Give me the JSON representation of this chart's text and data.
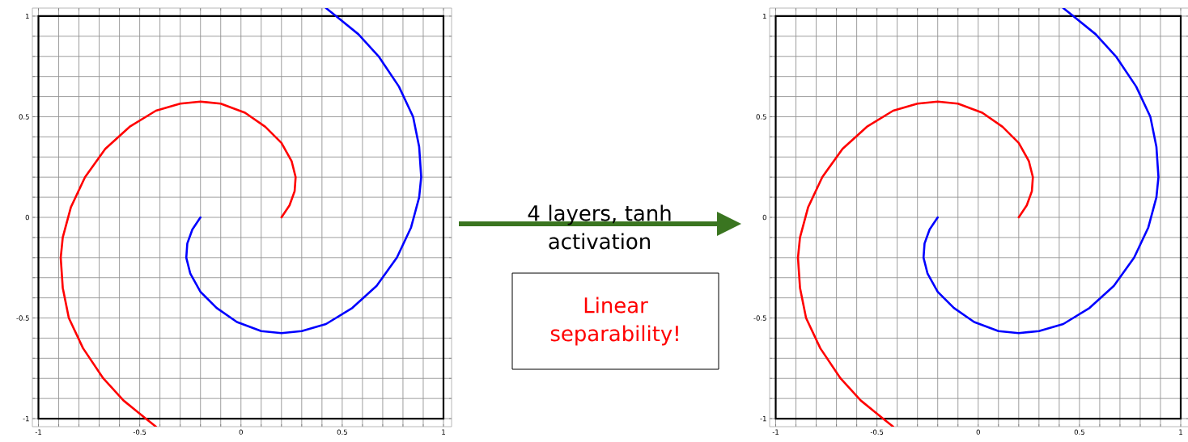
{
  "chart_data": [
    {
      "type": "line",
      "xlim": [
        -1.03,
        1.04
      ],
      "ylim": [
        -1.04,
        1.04
      ],
      "xticks": [
        -1,
        {
          "value": -0.9,
          "label": null
        },
        {
          "value": -0.8,
          "label": null
        },
        {
          "value": -0.7,
          "label": null
        },
        {
          "value": -0.6,
          "label": null
        },
        -0.5,
        {
          "value": -0.4,
          "label": null
        },
        {
          "value": -0.3,
          "label": null
        },
        {
          "value": -0.2,
          "label": null
        },
        {
          "value": -0.1,
          "label": null
        },
        0,
        {
          "value": 0.1,
          "label": null
        },
        {
          "value": 0.2,
          "label": null
        },
        {
          "value": 0.3,
          "label": null
        },
        {
          "value": 0.4,
          "label": null
        },
        0.5,
        {
          "value": 0.6,
          "label": null
        },
        {
          "value": 0.7,
          "label": null
        },
        {
          "value": 0.8,
          "label": null
        },
        {
          "value": 0.9,
          "label": null
        },
        1
      ],
      "yticks": [
        -1,
        {
          "value": -0.9,
          "label": null
        },
        {
          "value": -0.8,
          "label": null
        },
        {
          "value": -0.7,
          "label": null
        },
        {
          "value": -0.6,
          "label": null
        },
        -0.5,
        {
          "value": -0.4,
          "label": null
        },
        {
          "value": -0.3,
          "label": null
        },
        {
          "value": -0.2,
          "label": null
        },
        {
          "value": -0.1,
          "label": null
        },
        0,
        {
          "value": 0.1,
          "label": null
        },
        {
          "value": 0.2,
          "label": null
        },
        {
          "value": 0.3,
          "label": null
        },
        {
          "value": 0.4,
          "label": null
        },
        0.5,
        {
          "value": 0.6,
          "label": null
        },
        {
          "value": 0.7,
          "label": null
        },
        {
          "value": 0.8,
          "label": null
        },
        {
          "value": 0.9,
          "label": null
        },
        1
      ],
      "grid": true,
      "series": [
        {
          "color": "#ff0000",
          "x": [
            0.2,
            0.24,
            0.265,
            0.27,
            0.25,
            0.2,
            0.12,
            0.02,
            -0.1,
            -0.2,
            -0.3,
            -0.42,
            -0.55,
            -0.67,
            -0.77,
            -0.84,
            -0.88,
            -0.89,
            -0.88,
            -0.85,
            -0.78,
            -0.68,
            -0.58,
            -0.47,
            -0.42
          ],
          "values": [
            0,
            0.06,
            0.13,
            0.2,
            0.28,
            0.37,
            0.45,
            0.52,
            0.565,
            0.575,
            0.565,
            0.53,
            0.45,
            0.34,
            0.2,
            0.05,
            -0.1,
            -0.2,
            -0.35,
            -0.5,
            -0.65,
            -0.8,
            -0.91,
            -1.0,
            -1.04
          ]
        },
        {
          "color": "#0000ff",
          "x": [
            -0.2,
            -0.24,
            -0.265,
            -0.27,
            -0.25,
            -0.2,
            -0.12,
            -0.02,
            0.1,
            0.2,
            0.3,
            0.42,
            0.55,
            0.67,
            0.77,
            0.84,
            0.88,
            0.89,
            0.88,
            0.85,
            0.78,
            0.68,
            0.58,
            0.47,
            0.42
          ],
          "values": [
            0,
            -0.06,
            -0.13,
            -0.2,
            -0.28,
            -0.37,
            -0.45,
            -0.52,
            -0.565,
            -0.575,
            -0.565,
            -0.53,
            -0.45,
            -0.34,
            -0.2,
            -0.05,
            0.1,
            0.2,
            0.35,
            0.5,
            0.65,
            0.8,
            0.91,
            1.0,
            1.04
          ]
        }
      ]
    },
    {
      "type": "other",
      "annotations": [
        "4 layers, tanh activation",
        "Linear separability!"
      ]
    },
    {
      "type": "line",
      "xlim": [
        -1.03,
        1.04
      ],
      "ylim": [
        -1.04,
        1.04
      ],
      "xticks": [
        -1,
        {
          "value": -0.9,
          "label": null
        },
        {
          "value": -0.8,
          "label": null
        },
        {
          "value": -0.7,
          "label": null
        },
        {
          "value": -0.6,
          "label": null
        },
        -0.5,
        {
          "value": -0.4,
          "label": null
        },
        {
          "value": -0.3,
          "label": null
        },
        {
          "value": -0.2,
          "label": null
        },
        {
          "value": -0.1,
          "label": null
        },
        0,
        {
          "value": 0.1,
          "label": null
        },
        {
          "value": 0.2,
          "label": null
        },
        {
          "value": 0.3,
          "label": null
        },
        {
          "value": 0.4,
          "label": null
        },
        0.5,
        {
          "value": 0.6,
          "label": null
        },
        {
          "value": 0.7,
          "label": null
        },
        {
          "value": 0.8,
          "label": null
        },
        {
          "value": 0.9,
          "label": null
        },
        1
      ],
      "yticks": [
        -1,
        {
          "value": -0.9,
          "label": null
        },
        {
          "value": -0.8,
          "label": null
        },
        {
          "value": -0.7,
          "label": null
        },
        {
          "value": -0.6,
          "label": null
        },
        -0.5,
        {
          "value": -0.4,
          "label": null
        },
        {
          "value": -0.3,
          "label": null
        },
        {
          "value": -0.2,
          "label": null
        },
        {
          "value": -0.1,
          "label": null
        },
        0,
        {
          "value": 0.1,
          "label": null
        },
        {
          "value": 0.2,
          "label": null
        },
        {
          "value": 0.3,
          "label": null
        },
        {
          "value": 0.4,
          "label": null
        },
        0.5,
        {
          "value": 0.6,
          "label": null
        },
        {
          "value": 0.7,
          "label": null
        },
        {
          "value": 0.8,
          "label": null
        },
        {
          "value": 0.9,
          "label": null
        },
        1
      ],
      "grid": true,
      "series": [
        {
          "color": "#ff0000",
          "x": [
            0.2,
            0.24,
            0.265,
            0.27,
            0.25,
            0.2,
            0.12,
            0.02,
            -0.1,
            -0.2,
            -0.3,
            -0.42,
            -0.55,
            -0.67,
            -0.77,
            -0.84,
            -0.88,
            -0.89,
            -0.88,
            -0.85,
            -0.78,
            -0.68,
            -0.58,
            -0.47,
            -0.42
          ],
          "values": [
            0,
            0.06,
            0.13,
            0.2,
            0.28,
            0.37,
            0.45,
            0.52,
            0.565,
            0.575,
            0.565,
            0.53,
            0.45,
            0.34,
            0.2,
            0.05,
            -0.1,
            -0.2,
            -0.35,
            -0.5,
            -0.65,
            -0.8,
            -0.91,
            -1.0,
            -1.04
          ]
        },
        {
          "color": "#0000ff",
          "x": [
            -0.2,
            -0.24,
            -0.265,
            -0.27,
            -0.25,
            -0.2,
            -0.12,
            -0.02,
            0.1,
            0.2,
            0.3,
            0.42,
            0.55,
            0.67,
            0.77,
            0.84,
            0.88,
            0.89,
            0.88,
            0.85,
            0.78,
            0.68,
            0.58,
            0.47,
            0.42
          ],
          "values": [
            0,
            -0.06,
            -0.13,
            -0.2,
            -0.28,
            -0.37,
            -0.45,
            -0.52,
            -0.565,
            -0.575,
            -0.565,
            -0.53,
            -0.45,
            -0.34,
            -0.2,
            -0.05,
            0.1,
            0.2,
            0.35,
            0.5,
            0.65,
            0.8,
            0.91,
            1.0,
            1.04
          ]
        }
      ]
    }
  ]
}
